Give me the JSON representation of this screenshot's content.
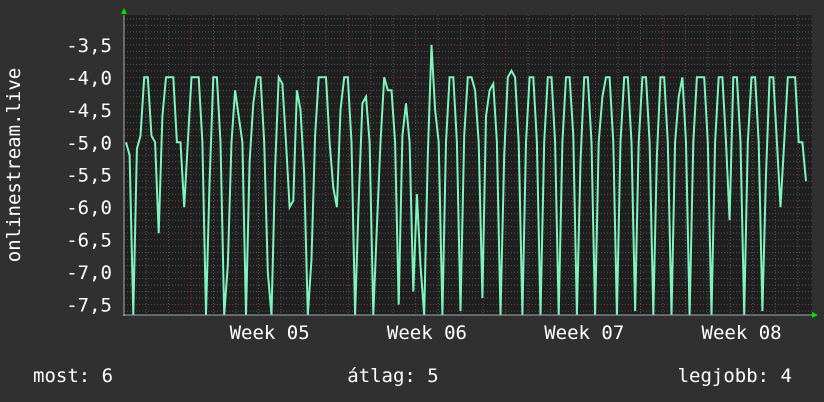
{
  "chart_data": {
    "type": "line",
    "ylabel": "onlinestream.live",
    "ylim": [
      -7.66,
      -3.04
    ],
    "yticks": [
      "-3,5",
      "-4,0",
      "-4,5",
      "-5,0",
      "-5,5",
      "-6,0",
      "-6,5",
      "-7,0",
      "-7,5"
    ],
    "ytick_values": [
      -3.5,
      -4.0,
      -4.5,
      -5.0,
      -5.5,
      -6.0,
      -6.5,
      -7.0,
      -7.5
    ],
    "xticks": [
      "Week 05",
      "Week 06",
      "Week 07",
      "Week 08"
    ],
    "grid": true,
    "colors": {
      "background": "#303030",
      "plot": "#1f1f1f",
      "line": "#7ff5bd",
      "grid_minor": "#555555",
      "grid_major": "#7a3b3b",
      "arrow": "#00dd00"
    },
    "series": [
      {
        "values": [
          -5.0,
          -5.2,
          -7.7,
          -5.1,
          -4.9,
          -4.0,
          -4.0,
          -4.9,
          -5.0,
          -6.4,
          -4.6,
          -4.0,
          -4.0,
          -4.0,
          -5.0,
          -5.0,
          -6.0,
          -5.0,
          -4.0,
          -4.0,
          -4.0,
          -5.0,
          -7.7,
          -5.6,
          -4.0,
          -4.0,
          -5.0,
          -7.7,
          -6.9,
          -5.0,
          -4.2,
          -4.6,
          -5.0,
          -7.7,
          -5.3,
          -4.4,
          -4.0,
          -4.0,
          -5.0,
          -7.0,
          -7.7,
          -5.4,
          -4.0,
          -4.1,
          -5.0,
          -6.0,
          -5.9,
          -4.2,
          -4.5,
          -5.5,
          -7.7,
          -6.8,
          -4.9,
          -4.0,
          -4.0,
          -4.0,
          -5.0,
          -5.7,
          -6.0,
          -4.5,
          -4.0,
          -4.0,
          -5.0,
          -7.7,
          -5.9,
          -4.4,
          -4.3,
          -5.0,
          -7.7,
          -6.3,
          -5.0,
          -4.0,
          -4.2,
          -4.2,
          -5.0,
          -7.5,
          -4.9,
          -4.4,
          -5.0,
          -7.3,
          -5.8,
          -6.9,
          -7.7,
          -5.2,
          -3.5,
          -4.5,
          -5.0,
          -7.7,
          -5.0,
          -4.0,
          -4.0,
          -5.0,
          -7.6,
          -4.9,
          -4.0,
          -4.0,
          -4.2,
          -5.0,
          -7.4,
          -4.6,
          -4.2,
          -4.1,
          -5.0,
          -7.7,
          -5.2,
          -4.0,
          -3.9,
          -4.0,
          -5.0,
          -7.7,
          -5.0,
          -4.0,
          -4.0,
          -5.0,
          -7.7,
          -5.0,
          -4.0,
          -4.0,
          -5.0,
          -7.7,
          -5.0,
          -4.0,
          -4.0,
          -4.9,
          -7.7,
          -5.3,
          -4.0,
          -4.0,
          -5.0,
          -7.7,
          -5.0,
          -4.3,
          -4.0,
          -4.0,
          -5.0,
          -7.7,
          -5.0,
          -4.0,
          -4.0,
          -5.0,
          -7.6,
          -5.0,
          -4.0,
          -4.0,
          -5.0,
          -7.7,
          -5.2,
          -4.0,
          -4.0,
          -5.0,
          -7.7,
          -5.0,
          -4.3,
          -4.0,
          -5.0,
          -7.7,
          -5.0,
          -4.0,
          -4.0,
          -4.0,
          -5.0,
          -7.7,
          -5.0,
          -4.0,
          -4.0,
          -5.0,
          -6.2,
          -4.0,
          -4.0,
          -5.0,
          -7.7,
          -5.0,
          -4.0,
          -4.0,
          -5.0,
          -7.6,
          -5.5,
          -4.0,
          -4.0,
          -5.0,
          -6.0,
          -5.0,
          -4.0,
          -4.0,
          -4.0,
          -5.0,
          -5.0,
          -5.6
        ]
      }
    ]
  },
  "footer": {
    "current": "most: 6",
    "average": "átlag: 5",
    "best": "legjobb: 4"
  }
}
